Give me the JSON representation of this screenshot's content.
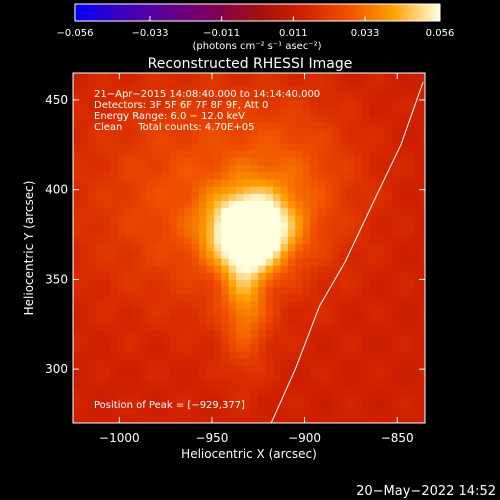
{
  "chart_data": {
    "type": "heatmap",
    "title": "Reconstructed RHESSI Image",
    "xlabel": "Heliocentric X (arcsec)",
    "ylabel": "Heliocentric Y (arcsec)",
    "xlim": [
      -1025,
      -835
    ],
    "ylim": [
      270,
      465
    ],
    "x_ticks": [
      -1000,
      -950,
      -900,
      -850
    ],
    "x_tick_labels": [
      "−1000",
      "−950",
      "−900",
      "−850"
    ],
    "y_ticks": [
      300,
      350,
      400,
      450
    ],
    "y_tick_labels": [
      "300",
      "350",
      "400",
      "450"
    ],
    "colorbar": {
      "range": [
        -0.056,
        0.056
      ],
      "ticks": [
        -0.056,
        -0.033,
        -0.011,
        0.011,
        0.033,
        0.056
      ],
      "tick_labels": [
        "−0.056",
        "−0.033",
        "−0.011",
        "0.011",
        "0.033",
        "0.056"
      ],
      "unit_label": "(photons cm⁻² s⁻¹ asec⁻²)"
    },
    "annotations": [
      "21−Apr−2015 14:08:40.000 to 14:14:40.000",
      "Detectors: 3F 5F 6F 7F 8F 9F, Att 0",
      "Energy Range: 6.0 − 12.0 keV",
      "Clean     Total counts: 4.70E+05"
    ],
    "peak_label": "Position of Peak = [−929,377]",
    "peak": [
      -929,
      377
    ],
    "limb_curve": [
      [
        -918,
        270
      ],
      [
        -905,
        300
      ],
      [
        -892,
        335
      ],
      [
        -878,
        360
      ],
      [
        -862,
        395
      ],
      [
        -848,
        425
      ],
      [
        -836,
        460
      ]
    ],
    "sources": [
      {
        "x": -929,
        "y": 377,
        "sx": 15,
        "sy": 14,
        "amp": 0.052
      },
      {
        "x": -932,
        "y": 340,
        "sx": 9,
        "sy": 26,
        "amp": 0.02
      },
      {
        "x": -955,
        "y": 395,
        "sx": 45,
        "sy": 45,
        "amp": 0.015
      },
      {
        "x": -905,
        "y": 405,
        "sx": 25,
        "sy": 30,
        "amp": 0.01
      }
    ]
  },
  "footer": {
    "date_stamp": "20−May−2022 14:52"
  }
}
